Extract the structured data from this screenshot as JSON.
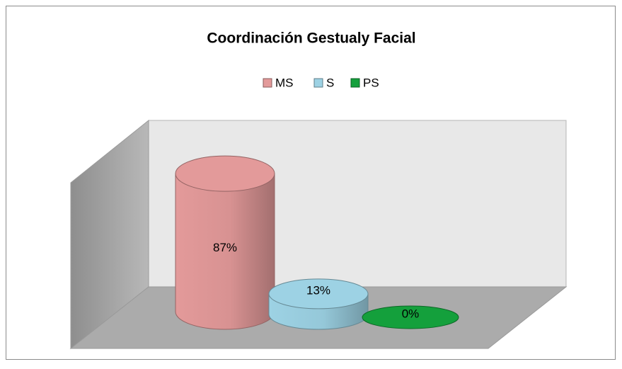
{
  "chart_data": {
    "type": "cylinder",
    "title": "Coordinación Gestualy Facial",
    "series": [
      {
        "name": "MS",
        "color": "#e39a9a",
        "values": [
          87
        ],
        "value_labels": [
          "87%"
        ]
      },
      {
        "name": "S",
        "color": "#9dd2e4",
        "values": [
          13
        ],
        "value_labels": [
          "13%"
        ]
      },
      {
        "name": "PS",
        "color": "#14a03c",
        "values": [
          0
        ],
        "value_labels": [
          "0%"
        ]
      }
    ],
    "ylim": [
      0,
      100
    ]
  }
}
